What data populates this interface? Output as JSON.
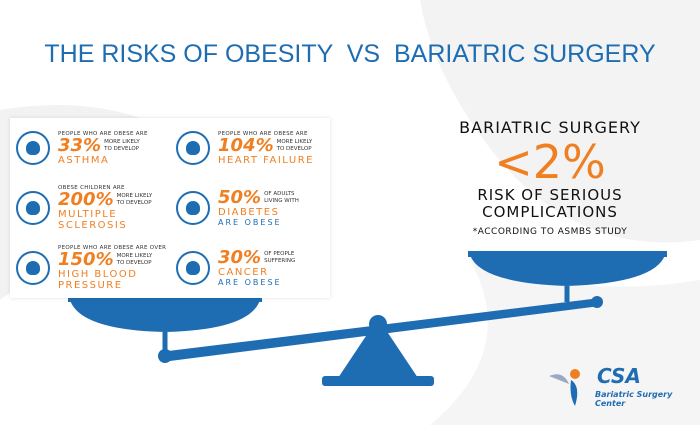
{
  "header": {
    "title": "THE RISKS OF OBESITY  VS  BARIATRIC SURGERY"
  },
  "risks": [
    {
      "lead": "PEOPLE WHO ARE OBESE ARE",
      "figure": "33%",
      "note": "MORE LIKELY TO DEVELOP",
      "condition": "ASTHMA"
    },
    {
      "lead": "PEOPLE WHO ARE OBESE ARE",
      "figure": "104%",
      "note": "MORE LIKELY TO DEVELOP",
      "condition": "HEART FAILURE"
    },
    {
      "lead": "OBESE CHILDREN ARE",
      "figure": "200%",
      "note": "MORE LIKELY TO DEVELOP",
      "condition": "MULTIPLE SCLEROSIS"
    },
    {
      "figure": "50%",
      "note": "OF ADULTS LIVING WITH",
      "condition": "DIABETES",
      "tail": "ARE OBESE"
    },
    {
      "lead": "PEOPLE WHO ARE OBESE ARE OVER",
      "figure": "150%",
      "note": "MORE LIKELY TO DEVELOP",
      "condition": "HIGH BLOOD PRESSURE"
    },
    {
      "figure": "30%",
      "note": "OF PEOPLE SUFFERING",
      "condition": "CANCER",
      "tail": "ARE OBESE"
    }
  ],
  "surgery": {
    "heading": "BARIATRIC SURGERY",
    "figure": "<2%",
    "caption": "RISK OF SERIOUS COMPLICATIONS",
    "source": "*ACCORDING TO ASMBS STUDY"
  },
  "logo": {
    "mark": "CSA",
    "name": "Bariatric Surgery Center"
  }
}
